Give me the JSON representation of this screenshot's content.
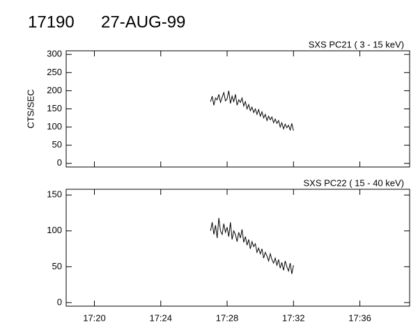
{
  "header": {
    "id": "17190",
    "date": "27-AUG-99"
  },
  "chart_data": [
    {
      "type": "line",
      "title": "SXS PC21  (  3 - 15 keV)",
      "ylabel": "CTS/SEC",
      "x": [
        1047.0,
        1047.1,
        1047.2,
        1047.3,
        1047.4,
        1047.5,
        1047.6,
        1047.7,
        1047.8,
        1047.9,
        1048.0,
        1048.1,
        1048.2,
        1048.3,
        1048.4,
        1048.5,
        1048.6,
        1048.7,
        1048.8,
        1048.9,
        1049.0,
        1049.1,
        1049.2,
        1049.3,
        1049.4,
        1049.5,
        1049.6,
        1049.7,
        1049.8,
        1049.9,
        1050.0,
        1050.1,
        1050.2,
        1050.3,
        1050.4,
        1050.5,
        1050.6,
        1050.7,
        1050.8,
        1050.9,
        1051.0,
        1051.1,
        1051.2,
        1051.3,
        1051.4,
        1051.5,
        1051.6,
        1051.7,
        1051.8,
        1051.9,
        1052.0
      ],
      "series": [
        {
          "color": "#000000",
          "values": [
            170,
            185,
            160,
            180,
            175,
            190,
            168,
            182,
            195,
            172,
            178,
            200,
            165,
            185,
            170,
            190,
            160,
            175,
            168,
            180,
            158,
            170,
            150,
            162,
            145,
            155,
            140,
            150,
            135,
            148,
            130,
            142,
            125,
            135,
            118,
            130,
            120,
            128,
            112,
            122,
            110,
            118,
            100,
            112,
            95,
            108,
            98,
            105,
            92,
            110,
            90
          ]
        }
      ],
      "xlim": [
        1038.3,
        1059.0
      ],
      "ylim": [
        -10,
        310
      ],
      "yticks": [
        0,
        50,
        100,
        150,
        200,
        250,
        300
      ]
    },
    {
      "type": "line",
      "title": "SXS PC22  ( 15 - 40 keV)",
      "x": [
        1047.0,
        1047.1,
        1047.2,
        1047.3,
        1047.4,
        1047.5,
        1047.6,
        1047.7,
        1047.8,
        1047.9,
        1048.0,
        1048.1,
        1048.2,
        1048.3,
        1048.4,
        1048.5,
        1048.6,
        1048.7,
        1048.8,
        1048.9,
        1049.0,
        1049.1,
        1049.2,
        1049.3,
        1049.4,
        1049.5,
        1049.6,
        1049.7,
        1049.8,
        1049.9,
        1050.0,
        1050.1,
        1050.2,
        1050.3,
        1050.4,
        1050.5,
        1050.6,
        1050.7,
        1050.8,
        1050.9,
        1051.0,
        1051.1,
        1051.2,
        1051.3,
        1051.4,
        1051.5,
        1051.6,
        1051.7,
        1051.8,
        1051.9,
        1052.0
      ],
      "series": [
        {
          "color": "#000000",
          "values": [
            100,
            112,
            95,
            108,
            90,
            118,
            100,
            95,
            110,
            98,
            105,
            92,
            112,
            88,
            100,
            95,
            85,
            98,
            90,
            102,
            84,
            92,
            80,
            88,
            75,
            85,
            78,
            82,
            70,
            76,
            68,
            75,
            62,
            70,
            65,
            58,
            68,
            60,
            55,
            62,
            52,
            60,
            48,
            56,
            45,
            58,
            50,
            44,
            55,
            40,
            52
          ]
        }
      ],
      "xlim": [
        1038.3,
        1059.0
      ],
      "ylim": [
        -5,
        158
      ],
      "yticks": [
        0,
        50,
        100,
        150
      ],
      "xticks": [
        {
          "value": 1040,
          "label": "17:20"
        },
        {
          "value": 1044,
          "label": "17:24"
        },
        {
          "value": 1048,
          "label": "17:28"
        },
        {
          "value": 1052,
          "label": "17:32"
        },
        {
          "value": 1056,
          "label": "17:36"
        }
      ]
    }
  ]
}
